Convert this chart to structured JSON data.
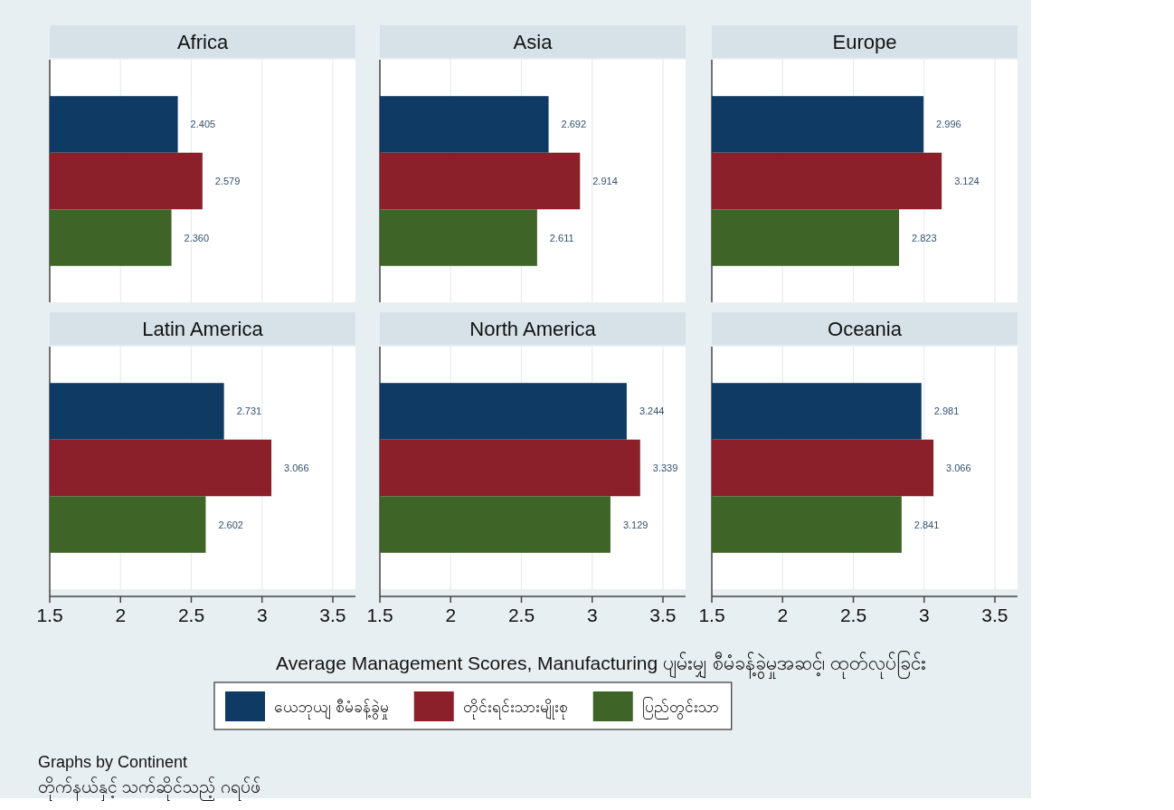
{
  "chart_data": [
    {
      "type": "bar",
      "orientation": "horizontal",
      "title": "Africa",
      "categories": [
        null
      ],
      "xlim": [
        1.5,
        3.66
      ],
      "xticks": [
        1.5,
        2,
        2.5,
        3,
        3.5
      ],
      "grid": "x",
      "tick_labels": false,
      "series": [
        {
          "color": "#0e3a63",
          "values": [
            2.405
          ],
          "value_labels": [
            "2.405"
          ]
        },
        {
          "color": "#8b1f2a",
          "values": [
            2.579
          ],
          "value_labels": [
            "2.579"
          ]
        },
        {
          "color": "#3f6428",
          "values": [
            2.36
          ],
          "value_labels": [
            "2.360"
          ]
        }
      ]
    },
    {
      "type": "bar",
      "orientation": "horizontal",
      "title": "Asia",
      "categories": [
        null
      ],
      "xlim": [
        1.5,
        3.66
      ],
      "xticks": [
        1.5,
        2,
        2.5,
        3,
        3.5
      ],
      "grid": "x",
      "tick_labels": false,
      "data_labels": true,
      "series": [
        {
          "color": "#0e3a63",
          "values": [
            2.692
          ]
        },
        {
          "color": "#8b1f2a",
          "values": [
            2.914
          ]
        },
        {
          "color": "#3f6428",
          "values": [
            2.611
          ]
        }
      ]
    },
    {
      "type": "bar",
      "orientation": "horizontal",
      "title": "Europe",
      "categories": [
        null
      ],
      "xlim": [
        1.5,
        3.66
      ],
      "xticks": [
        1.5,
        2,
        2.5,
        3,
        3.5
      ],
      "grid": "x",
      "tick_labels": false,
      "data_labels": true,
      "series": [
        {
          "color": "#0e3a63",
          "values": [
            2.996
          ]
        },
        {
          "color": "#8b1f2a",
          "values": [
            3.124
          ]
        },
        {
          "color": "#3f6428",
          "values": [
            2.823
          ]
        }
      ]
    },
    {
      "type": "bar",
      "orientation": "horizontal",
      "title": "Latin America",
      "categories": [
        null
      ],
      "xlim": [
        1.5,
        3.66
      ],
      "xticks": [
        1.5,
        2,
        2.5,
        3,
        3.5
      ],
      "grid": "x",
      "tick_labels": "x",
      "data_labels": true,
      "annotations": [
        "Graphs by Continent",
        "တိုက်နယ်နှင့် သက်ဆိုင်သည့် ဂရပ်ဖ်"
      ],
      "series": [
        {
          "color": "#0e3a63",
          "values": [
            2.731
          ]
        },
        {
          "color": "#8b1f2a",
          "values": [
            3.066
          ]
        },
        {
          "color": "#3f6428",
          "values": [
            2.602
          ]
        }
      ]
    },
    {
      "type": "bar",
      "orientation": "horizontal",
      "title": "North America",
      "categories": [
        null
      ],
      "xlim": [
        1.5,
        3.66
      ],
      "xticks": [
        1.5,
        2,
        2.5,
        3,
        3.5
      ],
      "grid": "x",
      "tick_labels": "x",
      "data_labels": true,
      "xlabel": "Average Management Scores, Manufacturing  ပျမ်းမျှ စီမံခန့်ခွဲမှုအဆင့်၊ ထုတ်လုပ်ခြင်း",
      "legend": "bottom",
      "series": [
        {
          "name": "ယေဘုယျ စီမံခန့်ခွဲမှု",
          "color": "#0e3a63",
          "values": [
            3.244
          ]
        },
        {
          "name": "တိုင်းရင်းသားမျိုးစု",
          "color": "#8b1f2a",
          "values": [
            3.339
          ]
        },
        {
          "name": "ပြည်တွင်းသာ",
          "color": "#3f6428",
          "values": [
            3.129
          ]
        }
      ]
    },
    {
      "type": "bar",
      "orientation": "horizontal",
      "title": "Oceania",
      "categories": [
        null
      ],
      "xlim": [
        1.5,
        3.66
      ],
      "xticks": [
        1.5,
        2,
        2.5,
        3,
        3.5
      ],
      "grid": "x",
      "tick_labels": "x",
      "data_labels": true,
      "series": [
        {
          "color": "#0e3a63",
          "values": [
            2.981
          ]
        },
        {
          "color": "#8b1f2a",
          "values": [
            3.066
          ]
        },
        {
          "color": "#3f6428",
          "values": [
            2.841
          ]
        }
      ]
    }
  ]
}
